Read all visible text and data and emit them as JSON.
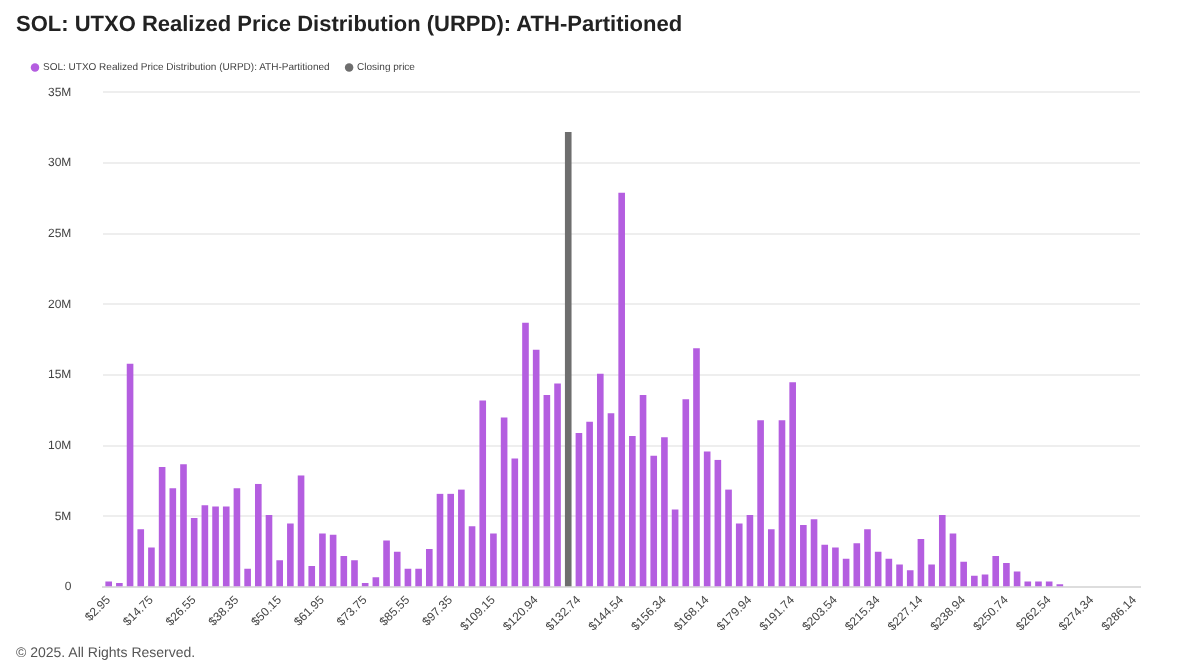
{
  "chart_data": {
    "type": "bar",
    "title": "SOL: UTXO Realized Price Distribution (URPD): ATH-Partitioned",
    "categories": [
      "$2.95",
      null,
      null,
      null,
      "$14.75",
      null,
      null,
      null,
      "$26.55",
      null,
      null,
      null,
      "$38.35",
      null,
      null,
      null,
      "$50.15",
      null,
      null,
      null,
      "$61.95",
      null,
      null,
      null,
      "$73.75",
      null,
      null,
      null,
      "$85.55",
      null,
      null,
      null,
      "$97.35",
      null,
      null,
      null,
      "$109.15",
      null,
      null,
      null,
      "$120.94",
      null,
      null,
      null,
      "$132.74",
      null,
      null,
      null,
      "$144.54",
      null,
      null,
      null,
      "$156.34",
      null,
      null,
      null,
      "$168.14",
      null,
      null,
      null,
      "$179.94",
      null,
      null,
      null,
      "$191.74",
      null,
      null,
      null,
      "$203.54",
      null,
      null,
      null,
      "$215.34",
      null,
      null,
      null,
      "$227.14",
      null,
      null,
      null,
      "$238.94",
      null,
      null,
      null,
      "$250.74",
      null,
      null,
      null,
      "$262.54",
      null,
      null,
      null,
      "$274.34",
      null,
      null,
      null,
      "$286.14"
    ],
    "series": [
      {
        "name": "SOL: UTXO Realized Price Distribution (URPD): ATH-Partitioned",
        "color": "#b45ee0",
        "values": [
          400000,
          300000,
          15800000,
          4100000,
          2800000,
          8500000,
          7000000,
          8700000,
          4900000,
          5800000,
          5700000,
          5700000,
          7000000,
          1300000,
          7300000,
          5100000,
          1900000,
          4500000,
          7900000,
          1500000,
          3800000,
          3700000,
          2200000,
          1900000,
          300000,
          700000,
          3300000,
          2500000,
          1300000,
          1300000,
          2700000,
          6600000,
          6600000,
          6900000,
          4300000,
          13200000,
          3800000,
          12000000,
          9100000,
          18700000,
          16800000,
          13600000,
          14400000,
          null,
          10900000,
          11700000,
          15100000,
          12300000,
          27900000,
          10700000,
          13600000,
          9300000,
          10600000,
          5500000,
          13300000,
          16900000,
          9600000,
          9000000,
          6900000,
          4500000,
          5100000,
          11800000,
          4100000,
          11800000,
          14500000,
          4400000,
          4800000,
          3000000,
          2800000,
          2000000,
          3100000,
          4100000,
          2500000,
          2000000,
          1600000,
          1200000,
          3400000,
          1600000,
          5100000,
          3800000,
          1800000,
          800000,
          900000,
          2200000,
          1700000,
          1100000,
          400000,
          400000,
          400000,
          200000,
          null,
          null,
          null,
          null,
          null,
          null,
          null
        ]
      },
      {
        "name": "Closing price",
        "color": "#6e6e6e",
        "values": [
          null,
          null,
          null,
          null,
          null,
          null,
          null,
          null,
          null,
          null,
          null,
          null,
          null,
          null,
          null,
          null,
          null,
          null,
          null,
          null,
          null,
          null,
          null,
          null,
          null,
          null,
          null,
          null,
          null,
          null,
          null,
          null,
          null,
          null,
          null,
          null,
          null,
          null,
          null,
          null,
          null,
          null,
          null,
          32200000,
          null,
          null,
          null,
          null,
          null,
          null,
          null,
          null,
          null,
          null,
          null,
          null,
          null,
          null,
          null,
          null,
          null,
          null,
          null,
          null,
          null,
          null,
          null,
          null,
          null,
          null,
          null,
          null,
          null,
          null,
          null,
          null,
          null,
          null,
          null,
          null,
          null,
          null,
          null,
          null,
          null,
          null,
          null,
          null,
          null,
          null,
          null,
          null,
          null,
          null,
          null,
          null,
          null
        ]
      }
    ],
    "ylim": [
      0,
      35000000
    ],
    "yticks": [
      {
        "value": 0,
        "label": "0"
      },
      {
        "value": 5000000,
        "label": "5M"
      },
      {
        "value": 10000000,
        "label": "10M"
      },
      {
        "value": 15000000,
        "label": "15M"
      },
      {
        "value": 20000000,
        "label": "20M"
      },
      {
        "value": 25000000,
        "label": "25M"
      },
      {
        "value": 30000000,
        "label": "30M"
      },
      {
        "value": 35000000,
        "label": "35M"
      }
    ],
    "grid": "y",
    "legend": "top left",
    "annotations": [
      "© 2025. All Rights Reserved."
    ]
  }
}
